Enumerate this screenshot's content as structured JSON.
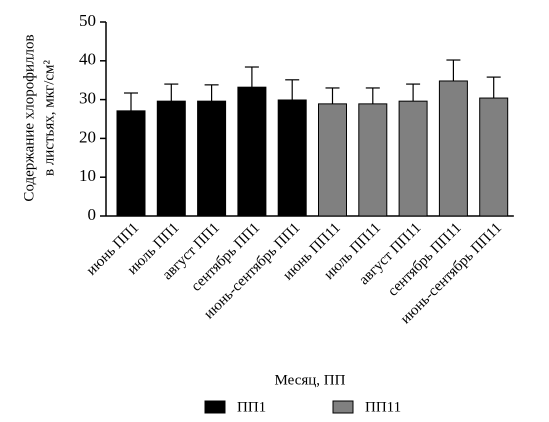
{
  "chart_data": {
    "type": "bar",
    "ylabel": [
      "Содержание хлорофиллов",
      "в листьях, мкг/см²"
    ],
    "xlabel": "Месяц, ПП",
    "categories": [
      "июнь ПП1",
      "июль ПП1",
      "август ПП1",
      "сентябрь ПП1",
      "июнь-сентябрь ПП1",
      "июнь ПП11",
      "июль ПП11",
      "август ПП11",
      "сентябрь ПП11",
      "июнь-сентябрь ПП11"
    ],
    "series": [
      {
        "name": "ПП1",
        "color": "#000000",
        "values": [
          27.1,
          29.6,
          29.6,
          33.2,
          29.9,
          null,
          null,
          null,
          null,
          null
        ],
        "errors": [
          4.6,
          4.4,
          4.2,
          5.2,
          5.2,
          null,
          null,
          null,
          null,
          null
        ]
      },
      {
        "name": "ПП11",
        "color": "#808080",
        "values": [
          null,
          null,
          null,
          null,
          null,
          28.9,
          28.9,
          29.6,
          34.8,
          30.4
        ],
        "errors": [
          null,
          null,
          null,
          null,
          null,
          4.1,
          4.1,
          4.4,
          5.4,
          5.4
        ]
      }
    ],
    "ylim": [
      0,
      50
    ],
    "yticks": [
      0,
      10,
      20,
      30,
      40,
      50
    ],
    "legend": "bottom"
  }
}
